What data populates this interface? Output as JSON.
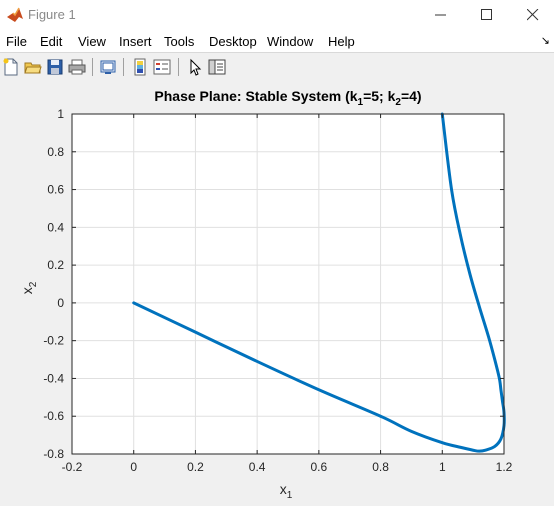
{
  "window": {
    "title": "Figure 1",
    "icon": "matlab-icon",
    "controls": [
      "minimize-icon",
      "maximize-icon",
      "close-icon"
    ]
  },
  "menu": {
    "items": [
      "File",
      "Edit",
      "View",
      "Insert",
      "Tools",
      "Desktop",
      "Window",
      "Help"
    ],
    "overflow_arrow": "↘"
  },
  "toolbar": {
    "buttons": [
      "new-figure-icon",
      "open-file-icon",
      "save-icon",
      "print-icon",
      "link-plot-icon",
      "colorbar-icon",
      "legend-icon",
      "edit-plot-arrow-icon",
      "property-inspector-icon"
    ]
  },
  "chart_data": {
    "type": "line",
    "title": "Phase Plane: Stable System (k",
    "title_parts": [
      "Phase Plane: Stable System (k",
      "1",
      "=5; k",
      "2",
      "=4)"
    ],
    "xlabel": "x",
    "xlabel_sub": "1",
    "ylabel": "x",
    "ylabel_sub": "2",
    "xlim": [
      -0.2,
      1.2
    ],
    "ylim": [
      -0.8,
      1.0
    ],
    "xticks": [
      -0.2,
      0,
      0.2,
      0.4,
      0.6,
      0.8,
      1,
      1.2
    ],
    "xtick_labels": [
      "-0.2",
      "0",
      "0.2",
      "0.4",
      "0.6",
      "0.8",
      "1",
      "1.2"
    ],
    "yticks": [
      -0.8,
      -0.6,
      -0.4,
      -0.2,
      0,
      0.2,
      0.4,
      0.6,
      0.8,
      1
    ],
    "ytick_labels": [
      "-0.8",
      "-0.6",
      "-0.4",
      "-0.2",
      "0",
      "0.2",
      "0.4",
      "0.6",
      "0.8",
      "1"
    ],
    "grid": true,
    "line_color": "#0072bd",
    "series": [
      {
        "x": [
          1.0,
          1.03,
          1.06,
          1.09,
          1.12,
          1.15,
          1.17,
          1.185,
          1.19,
          1.195,
          1.2,
          1.2,
          1.19,
          1.17,
          1.14,
          1.12,
          1.1,
          1.06,
          1.0,
          0.9,
          0.8,
          0.6,
          0.4,
          0.2,
          0.0
        ],
        "y": [
          1.0,
          0.6,
          0.35,
          0.15,
          -0.02,
          -0.18,
          -0.3,
          -0.4,
          -0.46,
          -0.52,
          -0.58,
          -0.65,
          -0.72,
          -0.76,
          -0.78,
          -0.785,
          -0.78,
          -0.765,
          -0.74,
          -0.68,
          -0.6,
          -0.46,
          -0.31,
          -0.155,
          0.0
        ]
      }
    ]
  }
}
